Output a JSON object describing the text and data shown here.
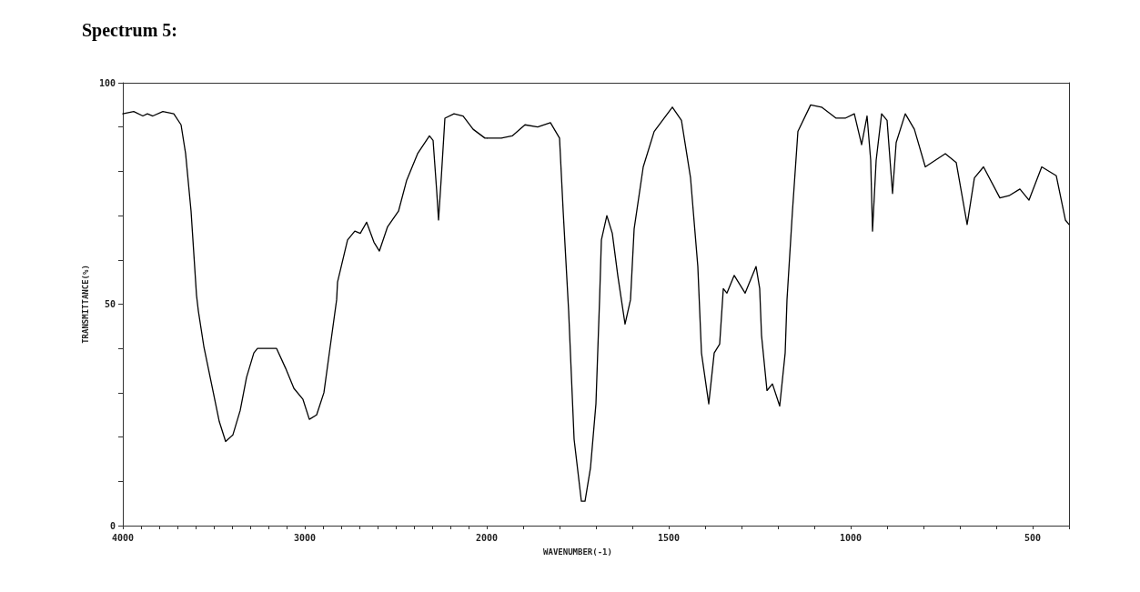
{
  "chart_data": [
    {
      "type": "line",
      "title": "Spectrum 5:",
      "ylabel": "TRANSMITTANCE(%)",
      "xlim": [
        4000,
        2000
      ],
      "ylim": [
        0,
        100
      ],
      "xticks": [
        4000,
        {
          "value": 3900,
          "label": null
        },
        {
          "value": 3800,
          "label": null
        },
        {
          "value": 3700,
          "label": null
        },
        {
          "value": 3600,
          "label": null
        },
        {
          "value": 3500,
          "label": null
        },
        {
          "value": 3400,
          "label": null
        },
        {
          "value": 3300,
          "label": null
        },
        {
          "value": 3200,
          "label": null
        },
        {
          "value": 3100,
          "label": null
        },
        3000,
        {
          "value": 2900,
          "label": null
        },
        {
          "value": 2800,
          "label": null
        },
        {
          "value": 2700,
          "label": null
        },
        {
          "value": 2600,
          "label": null
        },
        {
          "value": 2500,
          "label": null
        },
        {
          "value": 2400,
          "label": null
        },
        {
          "value": 2300,
          "label": null
        },
        {
          "value": 2200,
          "label": null
        },
        {
          "value": 2100,
          "label": null
        },
        2000
      ],
      "yticks": [
        0,
        {
          "value": 10,
          "label": null
        },
        {
          "value": 20,
          "label": null
        },
        {
          "value": 30,
          "label": null
        },
        {
          "value": 40,
          "label": null
        },
        50,
        {
          "value": 60,
          "label": null
        },
        {
          "value": 70,
          "label": null
        },
        {
          "value": 80,
          "label": null
        },
        {
          "value": 90,
          "label": null
        },
        100
      ],
      "grid": false,
      "marker": "none",
      "line_style": "solid",
      "series": [
        {
          "color": "#000000",
          "x": [
            4000,
            3940,
            3890,
            3865,
            3835,
            3780,
            3720,
            3680,
            3655,
            3625,
            3595,
            3585,
            3555,
            3510,
            3470,
            3435,
            3395,
            3355,
            3320,
            3280,
            3260,
            3155,
            3105,
            3060,
            3010,
            2975,
            2935,
            2895,
            2860,
            2825,
            2820,
            2765,
            2725,
            2695,
            2660,
            2620,
            2590,
            2545,
            2485,
            2440,
            2380,
            2315,
            2295,
            2275,
            2265,
            2250,
            2230,
            2180,
            2130,
            2075,
            2010,
            2000
          ],
          "values": [
            93,
            93.5,
            92.5,
            93,
            92.5,
            93.5,
            93,
            90.5,
            84,
            71,
            52,
            48.5,
            40.5,
            31.5,
            23.5,
            19,
            20.5,
            26,
            33.5,
            39,
            40,
            40,
            35.5,
            31,
            28.5,
            24,
            25,
            30,
            40.5,
            51,
            55,
            64.5,
            66.5,
            66,
            68.5,
            64,
            62,
            67.5,
            71,
            78,
            84,
            88,
            87,
            75.5,
            69,
            78.5,
            92,
            93,
            92.5,
            89.5,
            87.5,
            87.5
          ]
        }
      ]
    },
    {
      "type": "line",
      "xlabel": "WAVENUMBER(-1)",
      "xlim": [
        2000,
        400
      ],
      "ylim": [
        0,
        100
      ],
      "tick_labels": "x",
      "xticks": [
        {
          "value": 2000,
          "label": null
        },
        {
          "value": 1900,
          "label": null
        },
        {
          "value": 1800,
          "label": null
        },
        {
          "value": 1700,
          "label": null
        },
        {
          "value": 1600,
          "label": null
        },
        1500,
        {
          "value": 1400,
          "label": null
        },
        {
          "value": 1300,
          "label": null
        },
        {
          "value": 1200,
          "label": null
        },
        {
          "value": 1100,
          "label": null
        },
        1000,
        {
          "value": 900,
          "label": null
        },
        {
          "value": 800,
          "label": null
        },
        {
          "value": 700,
          "label": null
        },
        {
          "value": 600,
          "label": null
        },
        500,
        {
          "value": 400,
          "label": null
        }
      ],
      "grid": false,
      "marker": "none",
      "line_style": "solid",
      "series": [
        {
          "color": "#000000",
          "x": [
            2000,
            1960,
            1930,
            1895,
            1860,
            1825,
            1800,
            1790,
            1775,
            1760,
            1740,
            1730,
            1715,
            1700,
            1690,
            1685,
            1670,
            1655,
            1640,
            1620,
            1605,
            1595,
            1570,
            1540,
            1490,
            1465,
            1440,
            1420,
            1410,
            1390,
            1375,
            1360,
            1350,
            1340,
            1320,
            1290,
            1260,
            1250,
            1245,
            1230,
            1215,
            1195,
            1180,
            1175,
            1160,
            1145,
            1110,
            1080,
            1040,
            1015,
            990,
            970,
            955,
            945,
            940,
            930,
            915,
            900,
            885,
            875,
            850,
            825,
            795,
            740,
            710,
            680,
            660,
            635,
            590,
            565,
            535,
            510,
            475,
            435,
            410,
            400
          ],
          "values": [
            87.5,
            87.5,
            88,
            90.5,
            90,
            91,
            87.5,
            71,
            48.5,
            19.5,
            5.5,
            5.5,
            13,
            27.5,
            51,
            64.5,
            70,
            66,
            56.5,
            45.5,
            51,
            67,
            81,
            89,
            94.5,
            91.5,
            78.5,
            58.5,
            39,
            27.5,
            39,
            41,
            53.5,
            52.5,
            56.5,
            52.5,
            58.5,
            53.5,
            43,
            30.5,
            32,
            27,
            39,
            51,
            71,
            89,
            95,
            94.5,
            92,
            92,
            93,
            86,
            92.5,
            82.5,
            66.5,
            82.5,
            93,
            91.5,
            75,
            86.5,
            93,
            89.5,
            81,
            84,
            82,
            68,
            78.5,
            81,
            74,
            74.5,
            76,
            73.5,
            81,
            79,
            69,
            68
          ]
        }
      ]
    }
  ]
}
